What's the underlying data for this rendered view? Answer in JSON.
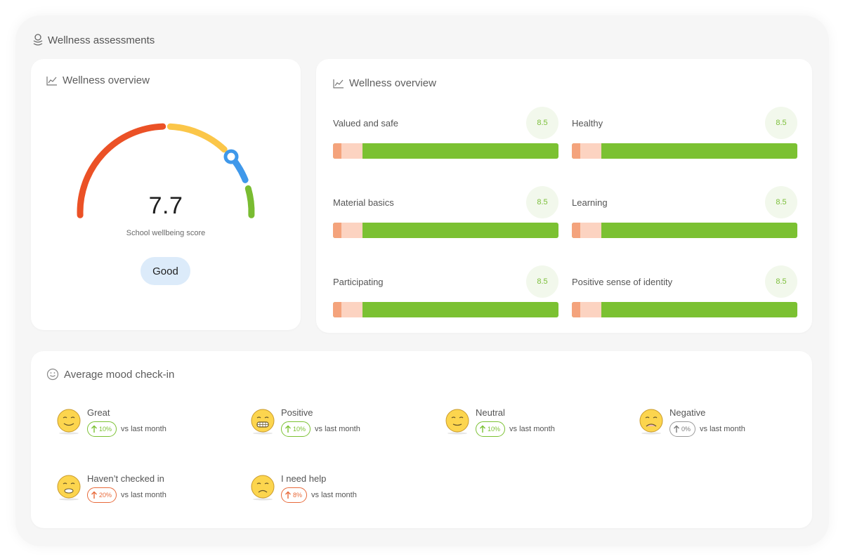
{
  "header": {
    "title": "Wellness assessments",
    "icon": "stacked-coins-icon"
  },
  "gauge_card": {
    "title": "Wellness overview",
    "icon": "line-chart-icon",
    "score": "7.7",
    "score_label": "School wellbeing score",
    "rating": "Good",
    "score_fraction": 0.77,
    "colors": {
      "red": "#eb5126",
      "yellow": "#fbc649",
      "blue": "#3f98ea",
      "green": "#79bc31"
    }
  },
  "bars_card": {
    "title": "Wellness overview",
    "icon": "line-chart-icon",
    "metrics": [
      {
        "label": "Valued and safe",
        "score": "8.5"
      },
      {
        "label": "Healthy",
        "score": "8.5"
      },
      {
        "label": "Material basics",
        "score": "8.5"
      },
      {
        "label": "Learning",
        "score": "8.5"
      },
      {
        "label": "Participating",
        "score": "8.5"
      },
      {
        "label": "Positive sense of identity",
        "score": "8.5"
      }
    ]
  },
  "mood_card": {
    "title": "Average mood check-in",
    "icon": "smiley-icon",
    "vs_label": "vs last month",
    "moods": [
      {
        "name": "Great",
        "change": "10%",
        "trend": "up",
        "color": "green",
        "face": "smiling-face-icon"
      },
      {
        "name": "Positive",
        "change": "10%",
        "trend": "up",
        "color": "green",
        "face": "grinning-face-icon"
      },
      {
        "name": "Neutral",
        "change": "10%",
        "trend": "up",
        "color": "green",
        "face": "neutral-face-icon"
      },
      {
        "name": "Negative",
        "change": "0%",
        "trend": "up",
        "color": "gray",
        "face": "sad-face-icon"
      },
      {
        "name": "Haven’t checked in",
        "change": "20%",
        "trend": "up",
        "color": "orange",
        "face": "sleepy-face-icon"
      },
      {
        "name": "I need help",
        "change": "8%",
        "trend": "up",
        "color": "orange",
        "face": "crying-face-icon"
      }
    ]
  }
}
